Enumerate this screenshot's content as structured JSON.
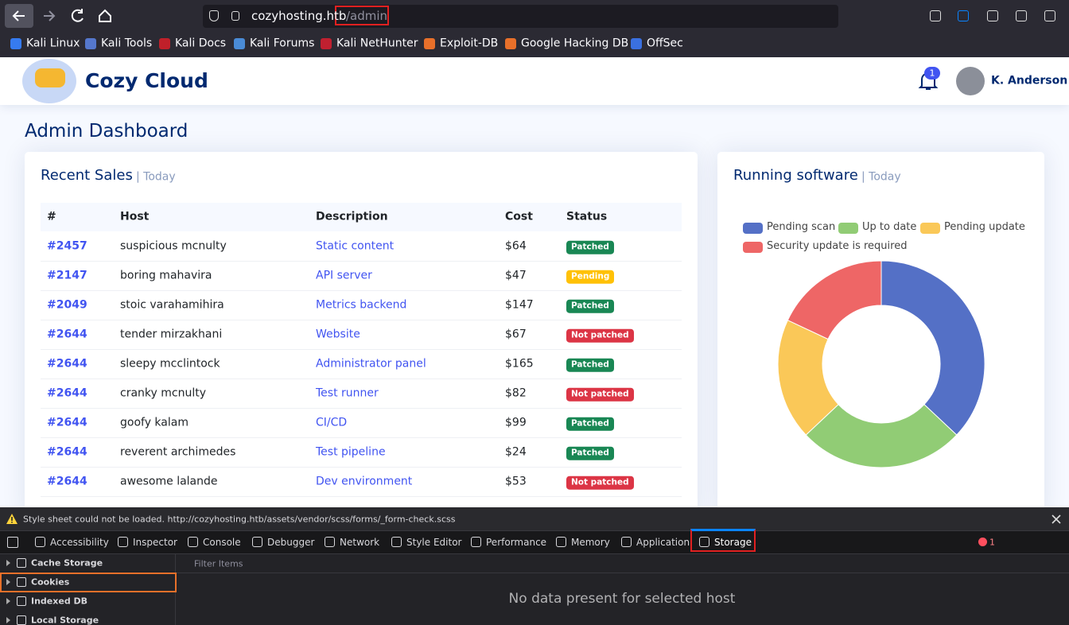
{
  "browser": {
    "url_host": "cozyhosting.htb",
    "url_path": "/admin",
    "bookmarks": [
      "Kali Linux",
      "Kali Tools",
      "Kali Docs",
      "Kali Forums",
      "Kali NetHunter",
      "Exploit-DB",
      "Google Hacking DB",
      "OffSec"
    ]
  },
  "header": {
    "brand": "Cozy Cloud",
    "notifications": 1,
    "user": "K. Anderson"
  },
  "page_title": "Admin Dashboard",
  "sales": {
    "title": "Recent Sales",
    "subtitle": "| Today",
    "columns": [
      "#",
      "Host",
      "Description",
      "Cost",
      "Status"
    ],
    "rows": [
      [
        "#2457",
        "suspicious mcnulty",
        "Static content",
        "$64",
        "Patched"
      ],
      [
        "#2147",
        "boring mahavira",
        "API server",
        "$47",
        "Pending"
      ],
      [
        "#2049",
        "stoic varahamihira",
        "Metrics backend",
        "$147",
        "Patched"
      ],
      [
        "#2644",
        "tender mirzakhani",
        "Website",
        "$67",
        "Not patched"
      ],
      [
        "#2644",
        "sleepy mcclintock",
        "Administrator panel",
        "$165",
        "Patched"
      ],
      [
        "#2644",
        "cranky mcnulty",
        "Test runner",
        "$82",
        "Not patched"
      ],
      [
        "#2644",
        "goofy kalam",
        "CI/CD",
        "$99",
        "Patched"
      ],
      [
        "#2644",
        "reverent archimedes",
        "Test pipeline",
        "$24",
        "Patched"
      ],
      [
        "#2644",
        "awesome lalande",
        "Dev environment",
        "$53",
        "Not patched"
      ]
    ],
    "status_colors": {
      "Patched": "#198754",
      "Pending": "#ffc107",
      "Not patched": "#dc3545"
    }
  },
  "chart_data": {
    "type": "doughnut",
    "title": "Running software",
    "subtitle": "| Today",
    "categories": [
      "Pending scan",
      "Up to date",
      "Pending update",
      "Security update is required"
    ],
    "values": [
      37,
      26,
      19,
      18
    ],
    "colors": [
      "#5470c6",
      "#91cc75",
      "#fac858",
      "#ee6666"
    ]
  },
  "devtools": {
    "warning": "Style sheet could not be loaded. http://cozyhosting.htb/assets/vendor/scss/forms/_form-check.scss",
    "tabs": [
      "Accessibility",
      "Inspector",
      "Console",
      "Debugger",
      "Network",
      "Style Editor",
      "Performance",
      "Memory",
      "Application",
      "Storage"
    ],
    "error_count": 1,
    "filter_placeholder": "Filter Items",
    "tree": [
      "Cache Storage",
      "Cookies",
      "Indexed DB",
      "Local Storage"
    ],
    "empty_message": "No data present for selected host"
  }
}
